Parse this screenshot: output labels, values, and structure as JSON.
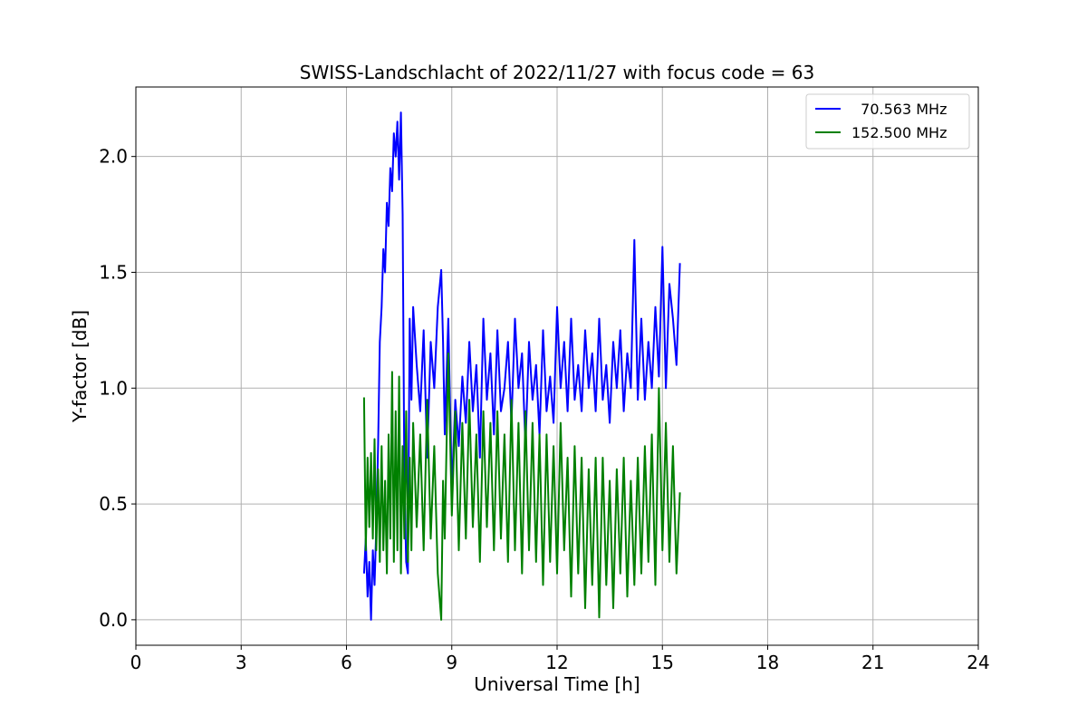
{
  "chart_data": {
    "type": "line",
    "title": "SWISS-Landschlacht of 2022/11/27 with focus code = 63",
    "xlabel": "Universal Time [h]",
    "ylabel": "Y-factor [dB]",
    "xlim": [
      0,
      24
    ],
    "ylim": [
      -0.11,
      2.3
    ],
    "xticks": [
      0,
      3,
      6,
      9,
      12,
      15,
      18,
      21,
      24
    ],
    "xtick_labels": [
      "0",
      "3",
      "6",
      "9",
      "12",
      "15",
      "18",
      "21",
      "24"
    ],
    "yticks": [
      0.0,
      0.5,
      1.0,
      1.5,
      2.0
    ],
    "ytick_labels": [
      "0.0",
      "0.5",
      "1.0",
      "1.5",
      "2.0"
    ],
    "grid": true,
    "legend_position": "top-right",
    "series": [
      {
        "name": "  70.563 MHz",
        "color": "#0000ff",
        "x": [
          6.5,
          6.55,
          6.6,
          6.65,
          6.7,
          6.75,
          6.8,
          6.85,
          6.9,
          6.95,
          7.0,
          7.05,
          7.1,
          7.15,
          7.2,
          7.25,
          7.3,
          7.35,
          7.4,
          7.45,
          7.5,
          7.55,
          7.6,
          7.65,
          7.7,
          7.75,
          7.8,
          7.85,
          7.9,
          8.0,
          8.1,
          8.2,
          8.3,
          8.4,
          8.5,
          8.6,
          8.7,
          8.75,
          8.8,
          8.9,
          9.0,
          9.1,
          9.2,
          9.3,
          9.4,
          9.5,
          9.6,
          9.7,
          9.8,
          9.9,
          10.0,
          10.1,
          10.2,
          10.3,
          10.4,
          10.5,
          10.6,
          10.7,
          10.8,
          10.9,
          11.0,
          11.1,
          11.2,
          11.3,
          11.4,
          11.5,
          11.6,
          11.7,
          11.8,
          11.9,
          12.0,
          12.1,
          12.2,
          12.3,
          12.4,
          12.5,
          12.6,
          12.7,
          12.8,
          12.9,
          13.0,
          13.1,
          13.2,
          13.3,
          13.4,
          13.5,
          13.6,
          13.7,
          13.8,
          13.9,
          14.0,
          14.1,
          14.2,
          14.3,
          14.4,
          14.5,
          14.6,
          14.7,
          14.8,
          14.9,
          15.0,
          15.1,
          15.2,
          15.3,
          15.4,
          15.5
        ],
        "values": [
          0.2,
          0.35,
          0.1,
          0.25,
          0.0,
          0.3,
          0.15,
          0.4,
          0.75,
          1.2,
          1.35,
          1.6,
          1.5,
          1.8,
          1.7,
          1.95,
          1.85,
          2.1,
          2.0,
          2.15,
          1.9,
          2.19,
          1.75,
          0.6,
          0.25,
          0.2,
          1.3,
          0.95,
          1.35,
          1.1,
          0.9,
          1.25,
          0.7,
          1.2,
          1.0,
          1.35,
          1.51,
          1.2,
          0.8,
          1.3,
          0.55,
          0.95,
          0.75,
          1.05,
          0.85,
          1.2,
          0.9,
          1.1,
          0.7,
          1.3,
          0.95,
          1.15,
          0.8,
          1.25,
          0.9,
          1.0,
          1.2,
          0.85,
          1.3,
          1.0,
          1.15,
          0.75,
          1.2,
          0.95,
          1.1,
          0.8,
          1.25,
          0.9,
          1.05,
          0.85,
          1.35,
          1.0,
          1.2,
          0.9,
          1.3,
          0.95,
          1.1,
          0.9,
          1.25,
          1.0,
          1.15,
          0.9,
          1.3,
          0.95,
          1.1,
          0.85,
          1.2,
          1.0,
          1.25,
          0.9,
          1.15,
          1.0,
          1.64,
          0.95,
          1.3,
          0.95,
          1.2,
          1.0,
          1.35,
          1.05,
          1.61,
          1.0,
          1.45,
          1.3,
          1.1,
          1.54
        ]
      },
      {
        "name": "152.500 MHz",
        "color": "#008000",
        "x": [
          6.5,
          6.55,
          6.6,
          6.65,
          6.7,
          6.75,
          6.8,
          6.85,
          6.9,
          6.95,
          7.0,
          7.05,
          7.1,
          7.15,
          7.2,
          7.25,
          7.3,
          7.35,
          7.4,
          7.45,
          7.5,
          7.55,
          7.6,
          7.65,
          7.7,
          7.75,
          7.8,
          7.85,
          7.9,
          8.0,
          8.1,
          8.2,
          8.3,
          8.4,
          8.5,
          8.6,
          8.7,
          8.75,
          8.8,
          8.9,
          9.0,
          9.1,
          9.2,
          9.3,
          9.4,
          9.5,
          9.6,
          9.7,
          9.8,
          9.9,
          10.0,
          10.1,
          10.2,
          10.3,
          10.4,
          10.5,
          10.6,
          10.7,
          10.8,
          10.9,
          11.0,
          11.1,
          11.2,
          11.3,
          11.4,
          11.5,
          11.6,
          11.7,
          11.8,
          11.9,
          12.0,
          12.1,
          12.2,
          12.3,
          12.4,
          12.5,
          12.6,
          12.7,
          12.8,
          12.9,
          13.0,
          13.1,
          13.2,
          13.3,
          13.4,
          13.5,
          13.6,
          13.7,
          13.8,
          13.9,
          14.0,
          14.1,
          14.2,
          14.3,
          14.4,
          14.5,
          14.6,
          14.7,
          14.8,
          14.9,
          15.0,
          15.1,
          15.2,
          15.3,
          15.4,
          15.5
        ],
        "values": [
          0.96,
          0.3,
          0.7,
          0.4,
          0.72,
          0.35,
          0.78,
          0.3,
          0.65,
          0.25,
          0.75,
          0.3,
          0.6,
          0.2,
          0.8,
          0.35,
          1.07,
          0.25,
          0.9,
          0.3,
          1.05,
          0.2,
          0.75,
          0.35,
          0.9,
          0.25,
          0.7,
          0.3,
          0.85,
          0.4,
          0.8,
          0.3,
          0.95,
          0.35,
          0.75,
          0.2,
          0.0,
          0.6,
          0.35,
          1.15,
          0.45,
          0.9,
          0.3,
          0.85,
          0.35,
          0.95,
          0.4,
          0.8,
          0.25,
          0.9,
          0.4,
          0.85,
          0.3,
          0.9,
          0.35,
          0.8,
          0.25,
          0.95,
          0.3,
          0.85,
          0.2,
          0.9,
          0.3,
          0.85,
          0.25,
          0.8,
          0.15,
          0.8,
          0.25,
          0.75,
          0.2,
          0.85,
          0.3,
          0.7,
          0.1,
          0.75,
          0.2,
          0.7,
          0.05,
          0.65,
          0.15,
          0.7,
          0.01,
          0.7,
          0.15,
          0.6,
          0.05,
          0.65,
          0.2,
          0.7,
          0.1,
          0.6,
          0.15,
          0.7,
          0.2,
          0.75,
          0.25,
          0.8,
          0.15,
          1.0,
          0.3,
          0.85,
          0.25,
          0.75,
          0.2,
          0.55
        ]
      }
    ]
  }
}
